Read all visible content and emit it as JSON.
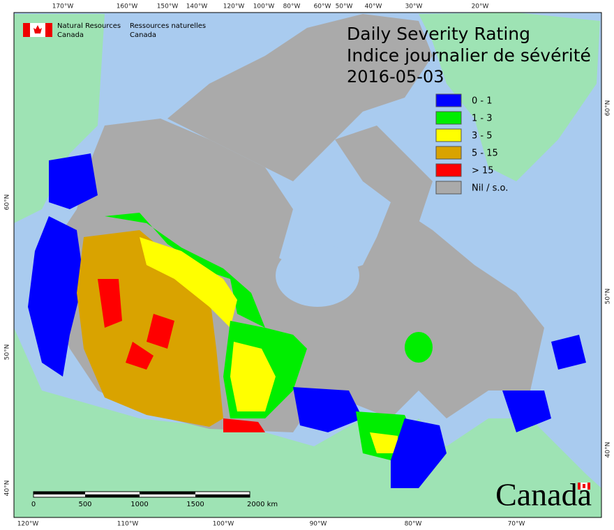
{
  "header": {
    "nrcan_en": [
      "Natural Resources",
      "Canada"
    ],
    "nrcan_fr": [
      "Ressources naturelles",
      "Canada"
    ]
  },
  "title": [
    "Daily Severity Rating",
    "Indice journalier de sévérité",
    "2016-05-03"
  ],
  "legend": [
    {
      "label": "0 - 1",
      "color": "#0000ff"
    },
    {
      "label": "1 - 3",
      "color": "#00ee00"
    },
    {
      "label": "3 - 5",
      "color": "#ffff00"
    },
    {
      "label": "5 - 15",
      "color": "#d9a300"
    },
    {
      "label": "> 15",
      "color": "#ff0000"
    },
    {
      "label": "Nil / s.o.",
      "color": "#aaaaaa"
    }
  ],
  "graticule": {
    "top": [
      "170°W",
      "160°W",
      "150°W",
      "140°W",
      "120°W",
      "100°W",
      "80°W",
      "60°W",
      "50°W",
      "40°W",
      "30°W",
      "20°W"
    ],
    "bottom": [
      "120°W",
      "110°W",
      "100°W",
      "90°W",
      "80°W",
      "70°W"
    ],
    "left": [
      "60°N",
      "50°N",
      "40°N"
    ],
    "right": [
      "60°N",
      "50°N",
      "40°N"
    ]
  },
  "scale_bar": [
    "0",
    "500",
    "1000",
    "1500",
    "2000 km"
  ],
  "wordmark": "Canada"
}
